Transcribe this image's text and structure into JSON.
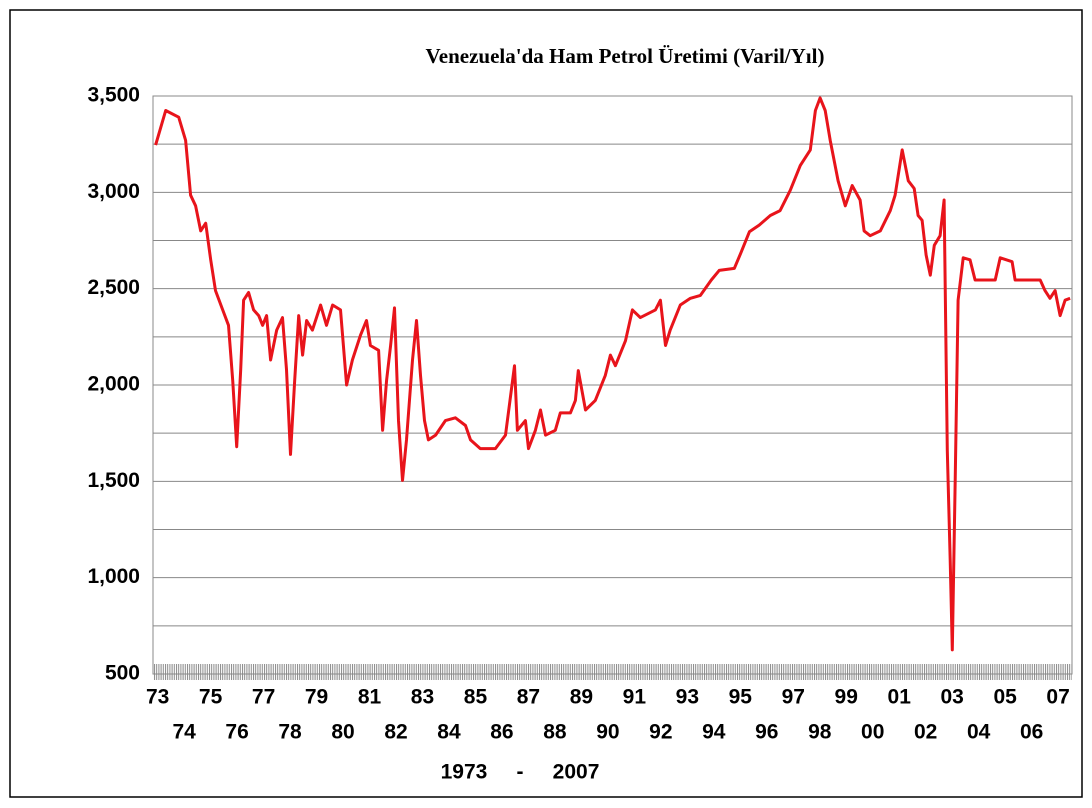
{
  "chart_data": {
    "type": "line",
    "title": "Venezuela'da Ham Petrol Üretimi  (Varil/Yıl)",
    "xlabel": "1973     -     2007",
    "color": "#e8141b",
    "x": [
      1973.0,
      1973.38,
      1973.87,
      1974.13,
      1974.32,
      1974.51,
      1974.7,
      1974.89,
      1975.08,
      1975.26,
      1975.53,
      1975.75,
      1975.91,
      1976.06,
      1976.21,
      1976.32,
      1976.51,
      1976.7,
      1976.89,
      1977.04,
      1977.19,
      1977.34,
      1977.57,
      1977.79,
      1977.94,
      1978.09,
      1978.25,
      1978.4,
      1978.55,
      1978.7,
      1978.92,
      1979.23,
      1979.45,
      1979.68,
      1979.98,
      1980.21,
      1980.43,
      1980.74,
      1980.96,
      1981.11,
      1981.42,
      1981.57,
      1981.72,
      1981.87,
      1982.02,
      1982.17,
      1982.32,
      1982.47,
      1982.7,
      1982.85,
      1983.0,
      1983.15,
      1983.3,
      1983.57,
      1983.94,
      1984.32,
      1984.7,
      1984.89,
      1985.26,
      1985.83,
      1986.21,
      1986.55,
      1986.66,
      1986.96,
      1987.08,
      1987.34,
      1987.53,
      1987.72,
      1988.09,
      1988.28,
      1988.66,
      1988.85,
      1988.96,
      1989.23,
      1989.6,
      1989.98,
      1990.17,
      1990.36,
      1990.74,
      1991.0,
      1991.3,
      1991.87,
      1992.06,
      1992.25,
      1992.43,
      1992.81,
      1993.19,
      1993.57,
      1993.98,
      1994.28,
      1994.85,
      1995.11,
      1995.42,
      1995.79,
      1996.21,
      1996.58,
      1996.96,
      1997.34,
      1997.72,
      1997.91,
      1998.09,
      1998.28,
      1998.47,
      1998.77,
      1999.04,
      1999.3,
      1999.6,
      1999.75,
      1999.98,
      2000.36,
      2000.74,
      2000.92,
      2001.19,
      2001.42,
      2001.64,
      2001.79,
      2001.94,
      2002.09,
      2002.25,
      2002.4,
      2002.62,
      2002.77,
      2002.89,
      2003.0,
      2003.08,
      2003.19,
      2003.3,
      2003.49,
      2003.75,
      2003.94,
      2004.7,
      2004.89,
      2005.34,
      2005.45,
      2006.4,
      2006.58,
      2006.77,
      2006.96,
      2007.15,
      2007.34,
      2007.53
    ],
    "values": [
      3245,
      3425,
      3390,
      3270,
      2985,
      2930,
      2800,
      2840,
      2650,
      2490,
      2390,
      2310,
      2025,
      1680,
      2080,
      2440,
      2480,
      2390,
      2360,
      2310,
      2360,
      2130,
      2285,
      2350,
      2080,
      1640,
      2025,
      2360,
      2155,
      2335,
      2285,
      2415,
      2310,
      2415,
      2390,
      2000,
      2130,
      2260,
      2335,
      2205,
      2180,
      1765,
      2025,
      2205,
      2400,
      1815,
      1505,
      1715,
      2130,
      2335,
      2050,
      1815,
      1715,
      1740,
      1815,
      1830,
      1790,
      1715,
      1670,
      1670,
      1740,
      2100,
      1765,
      1815,
      1670,
      1765,
      1870,
      1740,
      1765,
      1855,
      1855,
      1920,
      2075,
      1870,
      1920,
      2050,
      2155,
      2100,
      2230,
      2390,
      2350,
      2390,
      2440,
      2205,
      2285,
      2415,
      2450,
      2465,
      2545,
      2595,
      2605,
      2690,
      2795,
      2830,
      2880,
      2905,
      3010,
      3140,
      3220,
      3425,
      3490,
      3425,
      3270,
      3060,
      2930,
      3035,
      2960,
      2800,
      2775,
      2800,
      2905,
      2985,
      3220,
      3060,
      3020,
      2880,
      2855,
      2675,
      2570,
      2725,
      2775,
      2960,
      1660,
      1090,
      625,
      1505,
      2440,
      2660,
      2650,
      2545,
      2545,
      2660,
      2640,
      2545,
      2545,
      2490,
      2450,
      2490,
      2360,
      2440,
      2450
    ],
    "xlim": [
      1972.9,
      2007.6
    ],
    "xticks": [
      {
        "value": 1973,
        "label": "73"
      },
      {
        "value": 1974,
        "label": "74"
      },
      {
        "value": 1975,
        "label": "75"
      },
      {
        "value": 1976,
        "label": "76"
      },
      {
        "value": 1977,
        "label": "77"
      },
      {
        "value": 1978,
        "label": "78"
      },
      {
        "value": 1979,
        "label": "79"
      },
      {
        "value": 1980,
        "label": "80"
      },
      {
        "value": 1981,
        "label": "81"
      },
      {
        "value": 1982,
        "label": "82"
      },
      {
        "value": 1983,
        "label": "83"
      },
      {
        "value": 1984,
        "label": "84"
      },
      {
        "value": 1985,
        "label": "85"
      },
      {
        "value": 1986,
        "label": "86"
      },
      {
        "value": 1987,
        "label": "87"
      },
      {
        "value": 1988,
        "label": "88"
      },
      {
        "value": 1989,
        "label": "89"
      },
      {
        "value": 1990,
        "label": "90"
      },
      {
        "value": 1991,
        "label": "91"
      },
      {
        "value": 1992,
        "label": "92"
      },
      {
        "value": 1993,
        "label": "93"
      },
      {
        "value": 1994,
        "label": "94"
      },
      {
        "value": 1995,
        "label": "95"
      },
      {
        "value": 1996,
        "label": "96"
      },
      {
        "value": 1997,
        "label": "97"
      },
      {
        "value": 1998,
        "label": "98"
      },
      {
        "value": 1999,
        "label": "99"
      },
      {
        "value": 2000,
        "label": "00"
      },
      {
        "value": 2001,
        "label": "01"
      },
      {
        "value": 2002,
        "label": "02"
      },
      {
        "value": 2003,
        "label": "03"
      },
      {
        "value": 2004,
        "label": "04"
      },
      {
        "value": 2005,
        "label": "05"
      },
      {
        "value": 2006,
        "label": "06"
      },
      {
        "value": 2007,
        "label": "07"
      }
    ],
    "ylim": [
      500,
      3500
    ],
    "yticks": [
      500,
      {
        "value": 1000,
        "label": "1,000"
      },
      {
        "value": 1500,
        "label": "1,500"
      },
      {
        "value": 2000,
        "label": "2,000"
      },
      {
        "value": 2500,
        "label": "2,500"
      },
      {
        "value": 3000,
        "label": "3,000"
      },
      {
        "value": 3500,
        "label": "3,500"
      }
    ],
    "minor_yticks": [
      750,
      1250,
      1750,
      2250,
      2750,
      3250
    ],
    "grid": true
  }
}
